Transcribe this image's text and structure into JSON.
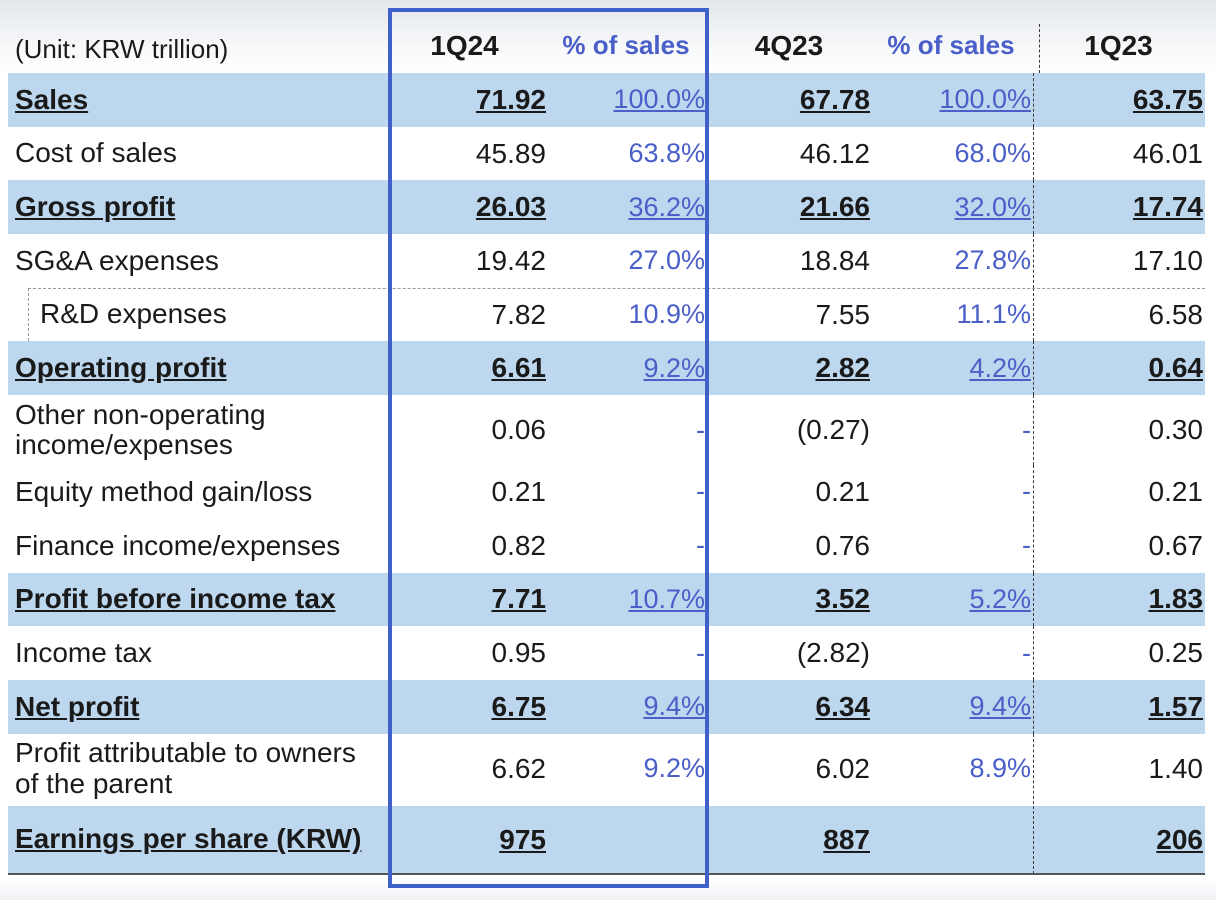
{
  "header": {
    "unit": "(Unit: KRW trillion)",
    "col1": "1Q24",
    "pct1": "% of sales",
    "col2": "4Q23",
    "pct2": "% of sales",
    "col3": "1Q23"
  },
  "rows": [
    {
      "label": "Sales",
      "v1": "71.92",
      "p1": "100.0%",
      "v2": "67.78",
      "p2": "100.0%",
      "v3": "63.75"
    },
    {
      "label": "Cost of sales",
      "v1": "45.89",
      "p1": "63.8%",
      "v2": "46.12",
      "p2": "68.0%",
      "v3": "46.01"
    },
    {
      "label": "Gross profit",
      "v1": "26.03",
      "p1": "36.2%",
      "v2": "21.66",
      "p2": "32.0%",
      "v3": "17.74"
    },
    {
      "label": "SG&A expenses",
      "v1": "19.42",
      "p1": "27.0%",
      "v2": "18.84",
      "p2": "27.8%",
      "v3": "17.10"
    },
    {
      "label": "R&D expenses",
      "v1": "7.82",
      "p1": "10.9%",
      "v2": "7.55",
      "p2": "11.1%",
      "v3": "6.58"
    },
    {
      "label": "Operating profit",
      "v1": "6.61",
      "p1": "9.2%",
      "v2": "2.82",
      "p2": "4.2%",
      "v3": "0.64"
    },
    {
      "label_line1": "Other non-operating",
      "label_line2": "income/expenses",
      "v1": "0.06",
      "p1": "-",
      "v2": "(0.27)",
      "p2": "-",
      "v3": "0.30"
    },
    {
      "label": "Equity method gain/loss",
      "v1": "0.21",
      "p1": "-",
      "v2": "0.21",
      "p2": "-",
      "v3": "0.21"
    },
    {
      "label": "Finance income/expenses",
      "v1": "0.82",
      "p1": "-",
      "v2": "0.76",
      "p2": "-",
      "v3": "0.67"
    },
    {
      "label": "Profit before income tax",
      "v1": "7.71",
      "p1": "10.7%",
      "v2": "3.52",
      "p2": "5.2%",
      "v3": "1.83"
    },
    {
      "label": "Income tax",
      "v1": "0.95",
      "p1": "-",
      "v2": "(2.82)",
      "p2": "-",
      "v3": "0.25"
    },
    {
      "label": "Net profit",
      "v1": "6.75",
      "p1": "9.4%",
      "v2": "6.34",
      "p2": "9.4%",
      "v3": "1.57"
    },
    {
      "label_line1": "Profit attributable to owners",
      "label_line2": "of the parent",
      "v1": "6.62",
      "p1": "9.2%",
      "v2": "6.02",
      "p2": "8.9%",
      "v3": "1.40"
    },
    {
      "label": "Earnings per share (KRW)",
      "v1": "975",
      "p1": "",
      "v2": "887",
      "p2": "",
      "v3": "206"
    }
  ]
}
